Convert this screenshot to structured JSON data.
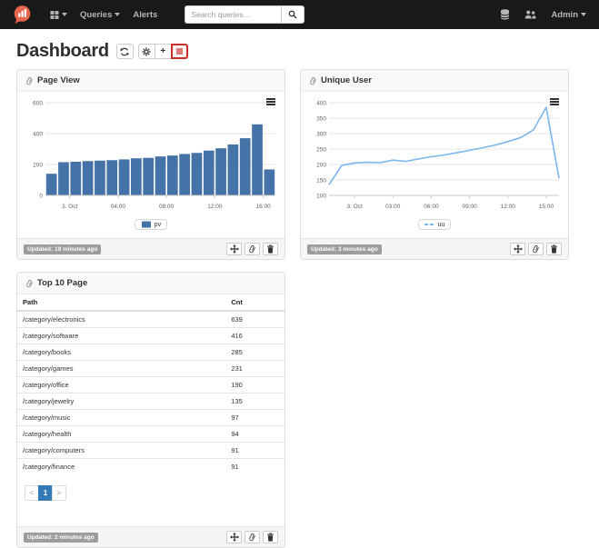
{
  "navbar": {
    "queries_label": "Queries",
    "alerts_label": "Alerts",
    "admin_label": "Admin",
    "search": {
      "placeholder": "Search queries...",
      "value": ""
    },
    "brand_color": "#e8654e"
  },
  "page": {
    "title": "Dashboard",
    "actions": {
      "add_label": "+"
    }
  },
  "widgets": {
    "page_view": {
      "title": "Page View",
      "updated": "Updated: 19 minutes ago"
    },
    "unique_user": {
      "title": "Unique User",
      "updated": "Updated: 3 minutes ago"
    },
    "top_pages": {
      "title": "Top 10 Page",
      "updated": "Updated: 2 minutes ago",
      "columns": {
        "path": "Path",
        "cnt": "Cnt"
      },
      "rows": [
        {
          "path": "/category/electronics",
          "cnt": "639"
        },
        {
          "path": "/category/software",
          "cnt": "416"
        },
        {
          "path": "/category/books",
          "cnt": "285"
        },
        {
          "path": "/category/games",
          "cnt": "231"
        },
        {
          "path": "/category/office",
          "cnt": "190"
        },
        {
          "path": "/category/jewelry",
          "cnt": "135"
        },
        {
          "path": "/category/music",
          "cnt": "97"
        },
        {
          "path": "/category/health",
          "cnt": "94"
        },
        {
          "path": "/category/computers",
          "cnt": "91"
        },
        {
          "path": "/category/finance",
          "cnt": "91"
        }
      ],
      "pagination": {
        "prev": "<",
        "current": "1",
        "next": ">"
      }
    }
  },
  "chart_data": [
    {
      "type": "bar",
      "title": "Page View",
      "legend": "pv",
      "legend_position": "bottom",
      "grid": true,
      "ylim": [
        0,
        600
      ],
      "yticks": [
        0,
        200,
        400,
        600
      ],
      "xticks": [
        {
          "pos": 2,
          "label": "3. Oct"
        },
        {
          "pos": 6,
          "label": "04:00"
        },
        {
          "pos": 10,
          "label": "08:00"
        },
        {
          "pos": 14,
          "label": "12:00"
        },
        {
          "pos": 18,
          "label": "16:00"
        }
      ],
      "series": [
        {
          "name": "pv",
          "color": "#4572a7",
          "values": [
            140,
            215,
            218,
            222,
            225,
            228,
            233,
            240,
            243,
            252,
            258,
            268,
            275,
            290,
            305,
            330,
            370,
            460,
            168
          ]
        }
      ]
    },
    {
      "type": "line",
      "title": "Unique User",
      "legend": "uu",
      "legend_position": "bottom",
      "grid": true,
      "ylim": [
        100,
        400
      ],
      "yticks": [
        100,
        150,
        200,
        250,
        300,
        350,
        400
      ],
      "xticks": [
        {
          "pos": 2,
          "label": "3. Oct"
        },
        {
          "pos": 5,
          "label": "03:00"
        },
        {
          "pos": 8,
          "label": "06:00"
        },
        {
          "pos": 11,
          "label": "09:00"
        },
        {
          "pos": 14,
          "label": "12:00"
        },
        {
          "pos": 17,
          "label": "15:00"
        }
      ],
      "series": [
        {
          "name": "uu",
          "color": "#7cb5ec",
          "values": [
            135,
            197,
            205,
            207,
            206,
            214,
            210,
            218,
            225,
            231,
            238,
            246,
            254,
            263,
            274,
            287,
            312,
            385,
            155
          ]
        }
      ]
    }
  ]
}
